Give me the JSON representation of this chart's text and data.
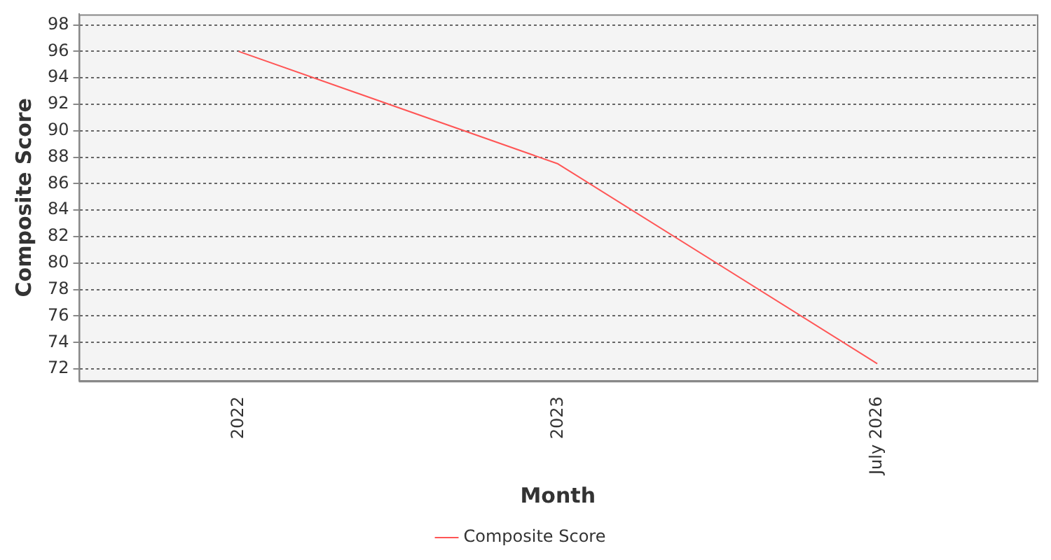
{
  "chart_data": {
    "type": "line",
    "xlabel": "Month",
    "ylabel": "Composite Score",
    "categories": [
      "2022",
      "2023",
      "July 2026"
    ],
    "series": [
      {
        "name": "Composite Score",
        "color": "#ff5555",
        "values": [
          96.0,
          87.5,
          72.4
        ]
      }
    ],
    "ylim": [
      71.1,
      98.8
    ],
    "yticks": [
      72,
      74,
      76,
      78,
      80,
      82,
      84,
      86,
      88,
      90,
      92,
      94,
      96,
      98
    ],
    "grid": "y",
    "legend": "bottom",
    "marker": "none",
    "line_style": "solid"
  }
}
